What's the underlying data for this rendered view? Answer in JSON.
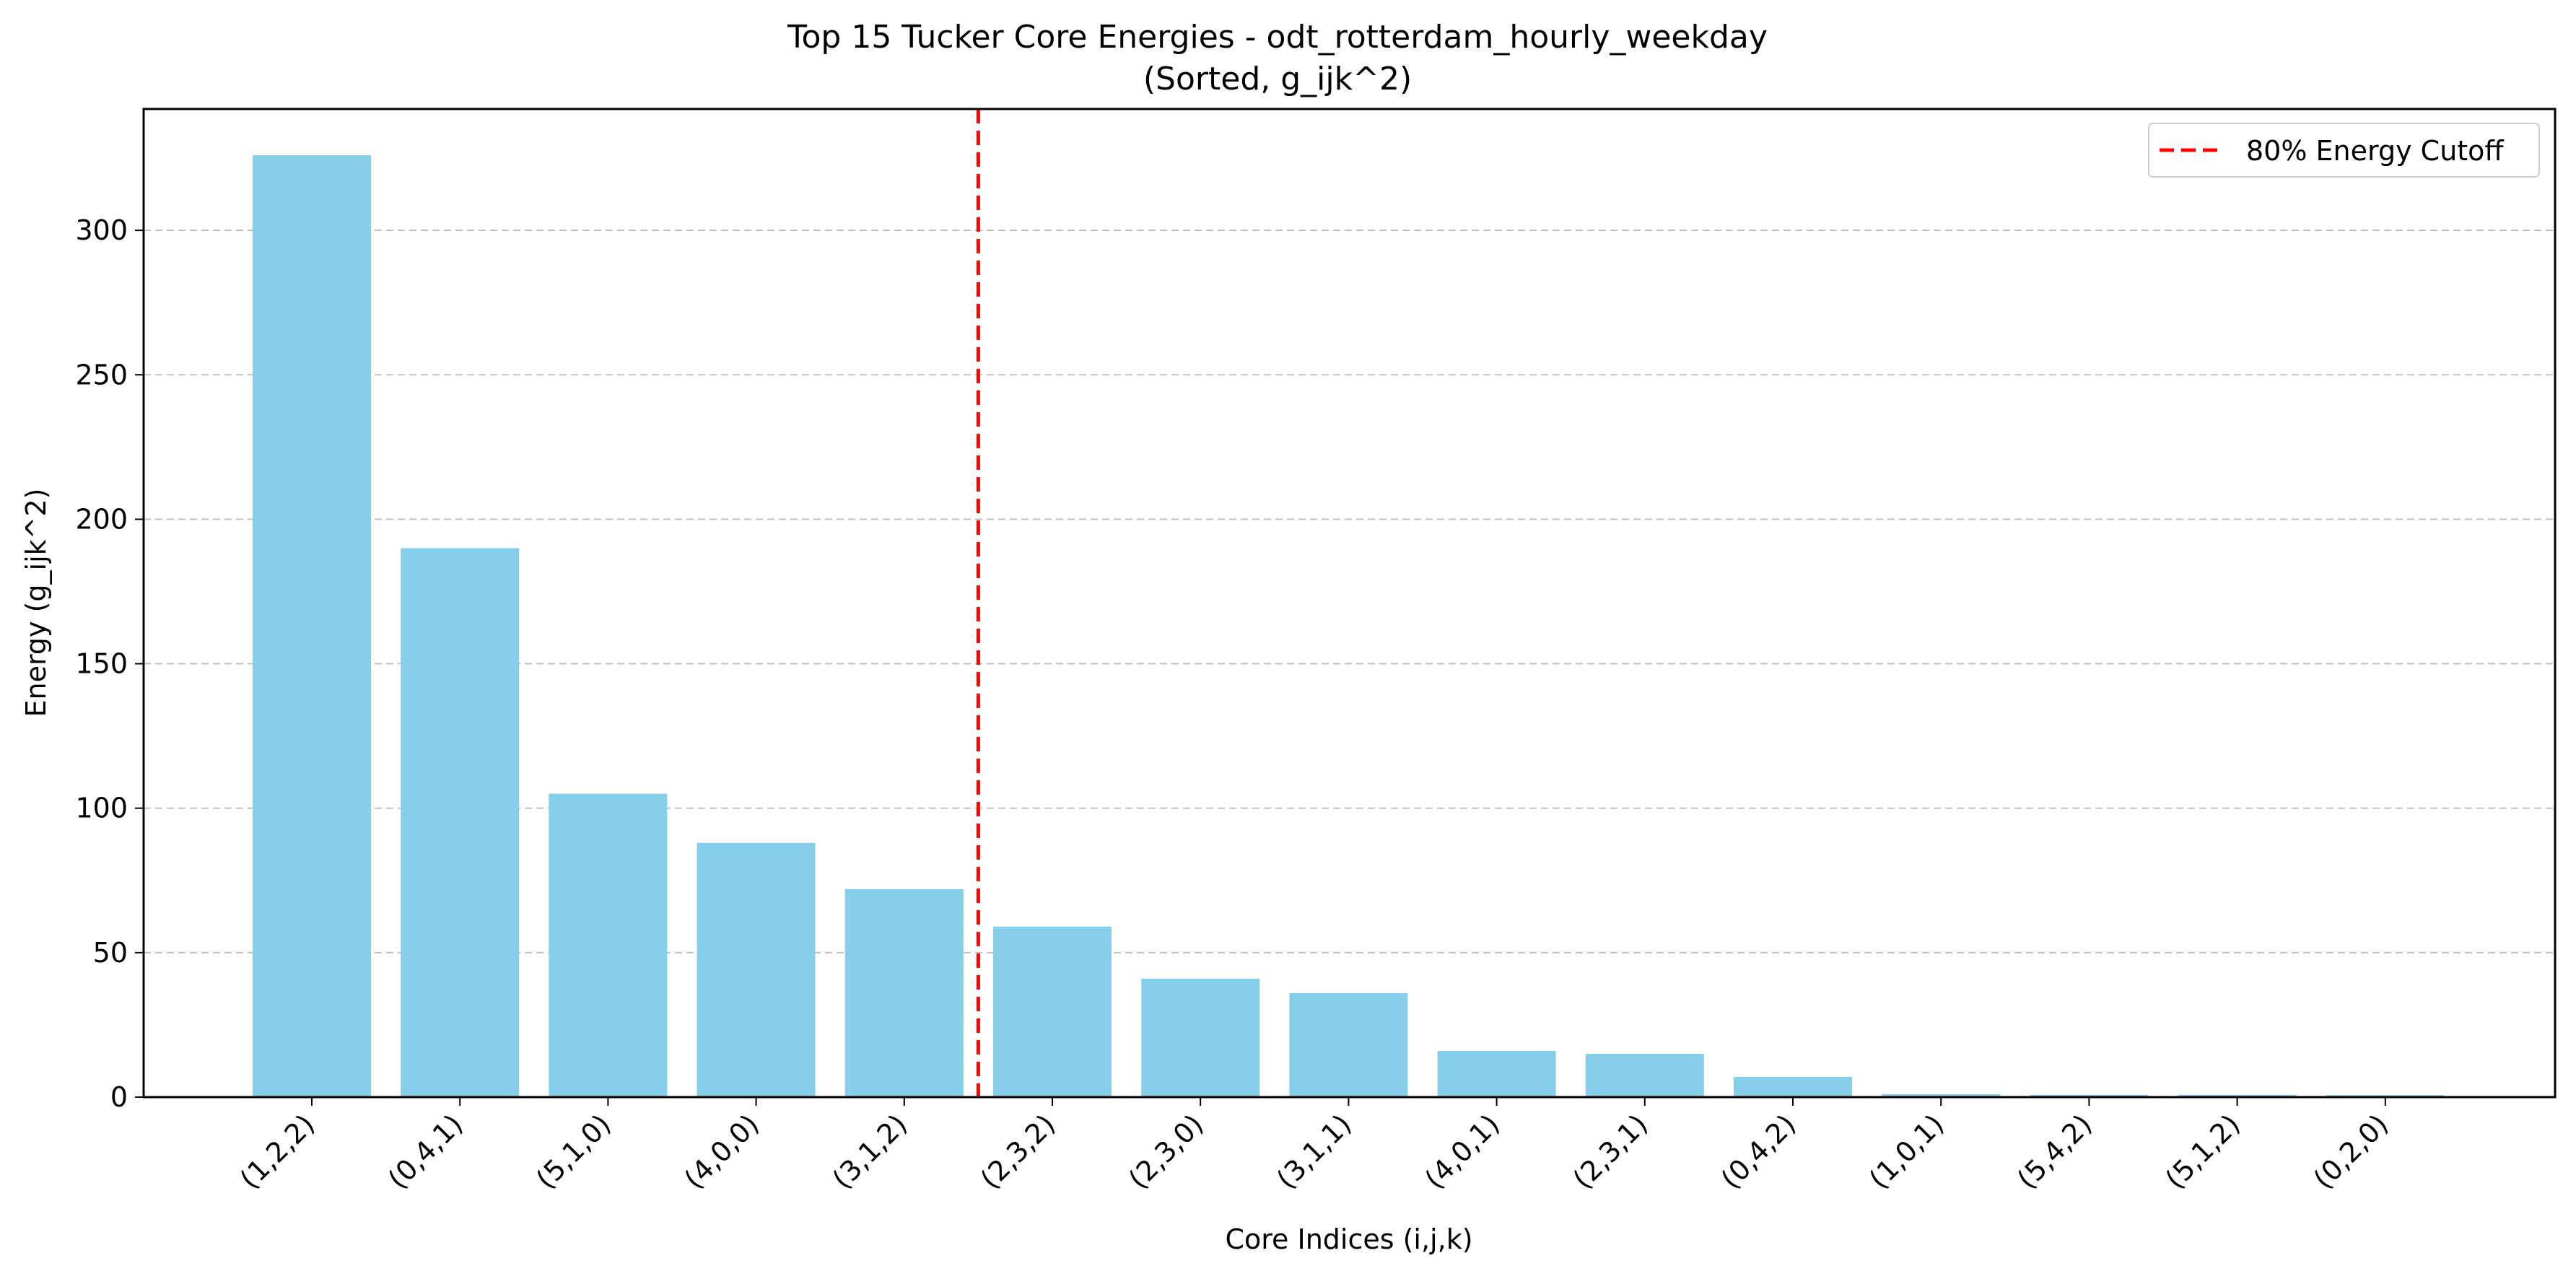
{
  "chart_data": {
    "type": "bar",
    "title": "Top 15 Tucker Core Energies - odt_rotterdam_hourly_weekday",
    "subtitle": "(Sorted, g_ijk^2)",
    "xlabel": "Core Indices (i,j,k)",
    "ylabel": "Energy (g_ijk^2)",
    "categories": [
      "(1,2,2)",
      "(0,4,1)",
      "(5,1,0)",
      "(4,0,0)",
      "(3,1,2)",
      "(2,3,2)",
      "(2,3,0)",
      "(3,1,1)",
      "(4,0,1)",
      "(2,3,1)",
      "(0,4,2)",
      "(1,0,1)",
      "(5,4,2)",
      "(5,1,2)",
      "(0,2,0)"
    ],
    "values": [
      326,
      190,
      105,
      88,
      72,
      59,
      41,
      36,
      16,
      15,
      7,
      1,
      0.8,
      0.8,
      0.7
    ],
    "ylim": [
      0,
      342
    ],
    "yticks": [
      0,
      50,
      100,
      150,
      200,
      250,
      300
    ],
    "bar_color": "#87CEEB",
    "grid": "horizontal dashed",
    "cutoff": {
      "label": "80% Energy Cutoff",
      "between_index": 4.5,
      "color": "#ff0000",
      "style": "dashed"
    },
    "legend": {
      "position": "top-right",
      "entries": [
        "80% Energy Cutoff"
      ]
    }
  }
}
